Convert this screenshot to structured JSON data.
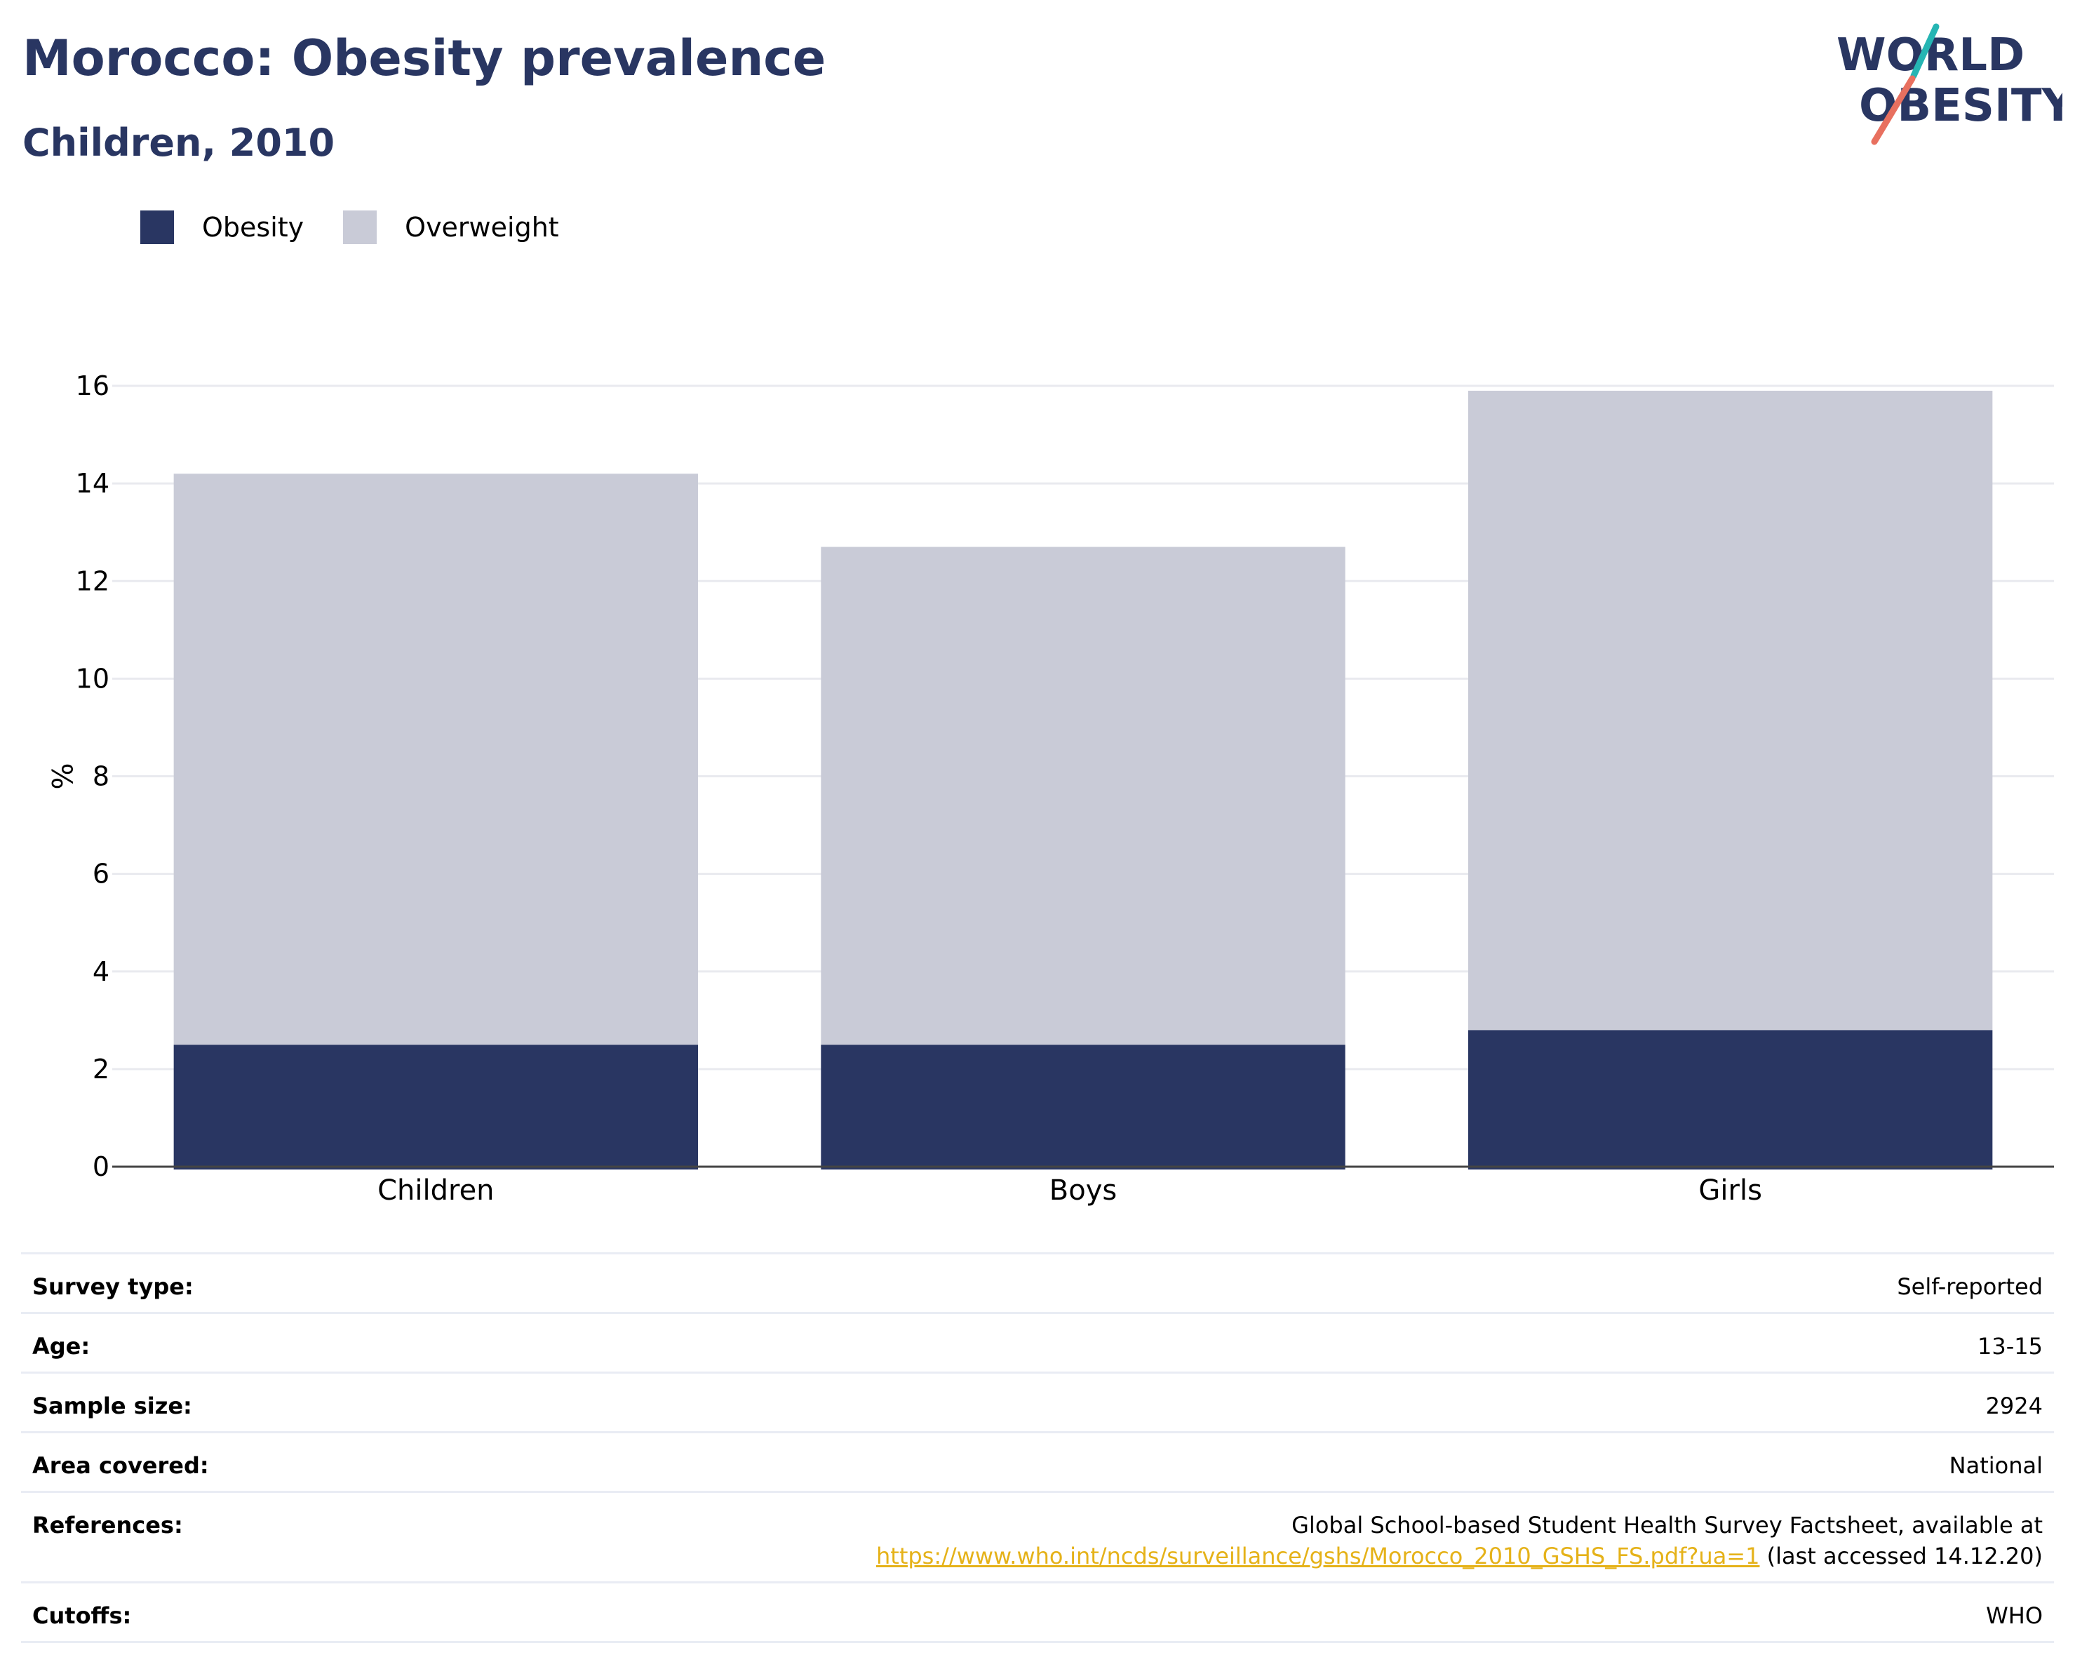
{
  "header": {
    "title": "Morocco: Obesity prevalence",
    "subtitle": "Children, 2010"
  },
  "logo": {
    "line1": "WORLD",
    "line2": "OBESITY",
    "colors": {
      "text": "#293662",
      "slash_teal": "#26b5b3",
      "slash_coral": "#e8705f"
    }
  },
  "legend": [
    {
      "label": "Obesity",
      "color": "#293662"
    },
    {
      "label": "Overweight",
      "color": "#c9cbd7"
    }
  ],
  "chart_data": {
    "type": "bar",
    "stacked": true,
    "categories": [
      "Children",
      "Boys",
      "Girls"
    ],
    "series": [
      {
        "name": "Obesity",
        "values": [
          2.5,
          2.5,
          2.8
        ],
        "color": "#293662"
      },
      {
        "name": "Overweight",
        "values": [
          11.7,
          10.2,
          13.1
        ],
        "color": "#c9cbd7"
      }
    ],
    "ylabel": "%",
    "xlabel": "",
    "ylim": [
      0,
      16
    ],
    "yticks": [
      0,
      2,
      4,
      6,
      8,
      10,
      12,
      14,
      16
    ],
    "grid": true,
    "legend_position": "top-left"
  },
  "info": {
    "rows": [
      {
        "key": "Survey type:",
        "value": "Self-reported"
      },
      {
        "key": "Age:",
        "value": "13-15"
      },
      {
        "key": "Sample size:",
        "value": "2924"
      },
      {
        "key": "Area covered:",
        "value": "National"
      },
      {
        "key": "References:",
        "value_line1": "Global School-based Student Health Survey Factsheet, available at",
        "link": "https://www.who.int/ncds/surveillance/gshs/Morocco_2010_GSHS_FS.pdf?ua=1",
        "suffix": " (last accessed 14.12.20)"
      },
      {
        "key": "Cutoffs:",
        "value": "WHO"
      }
    ]
  }
}
